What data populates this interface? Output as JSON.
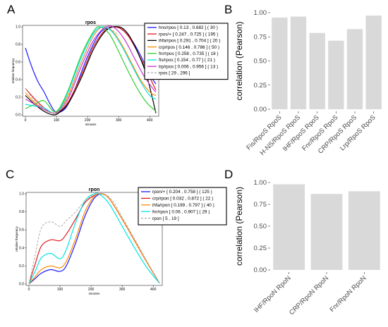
{
  "chart_data": [
    {
      "panel": "A",
      "type": "line",
      "title": "rpos",
      "xlabel": "minutes",
      "ylabel": "relative frequency",
      "xlim": [
        0,
        420
      ],
      "ylim": [
        0,
        1.0
      ],
      "xticks": [
        "0",
        "100",
        "200",
        "300",
        "400"
      ],
      "yticks": [
        "0.0",
        "0.2",
        "0.4",
        "0.6",
        "0.8",
        "1.0"
      ],
      "legend_position": "right",
      "series": [
        {
          "name": "hns/rpos [ 0.13 , 0.682 ] ( 30 )",
          "color": "#1a1aff",
          "dash": false,
          "x": [
            0,
            20,
            40,
            60,
            80,
            100,
            130,
            160,
            200,
            240,
            280,
            310,
            340,
            370,
            400,
            420
          ],
          "y": [
            0.76,
            0.55,
            0.38,
            0.26,
            0.12,
            0.03,
            0.08,
            0.3,
            0.66,
            0.93,
            1.0,
            0.97,
            0.86,
            0.68,
            0.46,
            0.35
          ]
        },
        {
          "name": "rpos/+ [ 0.247 , 0.725 ] ( 195 )",
          "color": "#e31a1c",
          "dash": false,
          "x": [
            0,
            30,
            60,
            90,
            110,
            140,
            180,
            220,
            260,
            300,
            330,
            360,
            390,
            420
          ],
          "y": [
            0.3,
            0.18,
            0.08,
            0.02,
            0.04,
            0.16,
            0.45,
            0.78,
            0.97,
            0.99,
            0.9,
            0.72,
            0.5,
            0.28
          ]
        },
        {
          "name": "ihfa/rpos [ 0.291 , 0.704 ] ( 20 )",
          "color": "#000000",
          "dash": false,
          "x": [
            0,
            30,
            60,
            90,
            110,
            140,
            180,
            220,
            260,
            300,
            330,
            360,
            390,
            420
          ],
          "y": [
            0.22,
            0.12,
            0.04,
            0.0,
            0.03,
            0.14,
            0.42,
            0.75,
            0.96,
            1.0,
            0.92,
            0.72,
            0.45,
            0.02
          ]
        },
        {
          "name": "crp/rpos [ 0.146 , 0.786 ] ( 50 )",
          "color": "#ff8c00",
          "dash": false,
          "x": [
            0,
            30,
            60,
            90,
            110,
            140,
            180,
            220,
            250,
            280,
            310,
            340,
            370,
            400,
            420
          ],
          "y": [
            0.25,
            0.14,
            0.06,
            0.02,
            0.06,
            0.24,
            0.6,
            0.9,
            1.0,
            0.95,
            0.8,
            0.6,
            0.4,
            0.26,
            0.22
          ]
        },
        {
          "name": "fnr/rpos [ 0.258 , 0.735 ] ( 18 )",
          "color": "#33cc33",
          "dash": false,
          "x": [
            0,
            30,
            60,
            90,
            110,
            140,
            180,
            220,
            240,
            270,
            300,
            330,
            360,
            390,
            420
          ],
          "y": [
            0.07,
            0.12,
            0.16,
            0.04,
            0.08,
            0.3,
            0.68,
            0.95,
            1.0,
            0.92,
            0.72,
            0.5,
            0.3,
            0.14,
            0.04
          ]
        },
        {
          "name": "fis/rpos [ 0.154 , 0.77 ] ( 21 )",
          "color": "#00e5e5",
          "dash": false,
          "x": [
            0,
            30,
            60,
            90,
            110,
            140,
            180,
            220,
            250,
            280,
            310,
            340,
            370,
            400,
            420
          ],
          "y": [
            0.12,
            0.1,
            0.08,
            0.02,
            0.06,
            0.28,
            0.65,
            0.93,
            1.0,
            0.94,
            0.78,
            0.58,
            0.38,
            0.22,
            0.18
          ]
        },
        {
          "name": "lrp/rpos [ 0.006 , 0.956 ] ( 13 )",
          "color": "#cc33cc",
          "dash": false,
          "x": [
            0,
            30,
            60,
            90,
            110,
            140,
            180,
            220,
            260,
            290,
            320,
            350,
            380,
            410,
            420
          ],
          "y": [
            0.18,
            0.12,
            0.06,
            0.02,
            0.05,
            0.2,
            0.55,
            0.85,
            1.0,
            0.98,
            0.85,
            0.65,
            0.45,
            0.3,
            0.26
          ]
        },
        {
          "name": "rpos [ 29 , 296 ]",
          "color": "#aaaaaa",
          "dash": true,
          "x": [
            0,
            30,
            60,
            90,
            110,
            140,
            180,
            220,
            250,
            280,
            300
          ],
          "y": [
            0.3,
            0.16,
            0.07,
            0.02,
            0.05,
            0.22,
            0.6,
            0.9,
            1.0,
            0.96,
            0.9
          ]
        }
      ]
    },
    {
      "panel": "B",
      "type": "bar",
      "ylabel": "correlation (Pearson)",
      "ylim": [
        0,
        1.0
      ],
      "yticks": [
        "0.00",
        "0.25",
        "0.50",
        "0.75",
        "1.00"
      ],
      "categories": [
        "Fis/RpoS RpoS",
        "H-NS/RpoS RpoS",
        "IHF/RpoS RpoS",
        "Fnr/RpoS RpoS",
        "CRP/RpoS RpoS",
        "Lrp/RpoS RpoS"
      ],
      "values": [
        0.95,
        0.96,
        0.79,
        0.71,
        0.83,
        0.97
      ]
    },
    {
      "panel": "C",
      "type": "line",
      "title": "rpon",
      "xlabel": "minutes",
      "ylabel": "relative frequency",
      "xlim": [
        0,
        420
      ],
      "ylim": [
        0,
        1.0
      ],
      "xticks": [
        "0",
        "100",
        "200",
        "300",
        "400"
      ],
      "yticks": [
        "0.0",
        "0.2",
        "0.4",
        "0.6",
        "0.8",
        "1.0"
      ],
      "legend_position": "right",
      "series": [
        {
          "name": "rpon/+ [ 0.204 , 0.758 ] ( 125 )",
          "color": "#1a1aff",
          "dash": false,
          "x": [
            0,
            20,
            40,
            70,
            100,
            120,
            150,
            180,
            210,
            235,
            260,
            300,
            340,
            380,
            420
          ],
          "y": [
            0.0,
            0.06,
            0.12,
            0.16,
            0.14,
            0.2,
            0.45,
            0.75,
            0.95,
            1.0,
            0.94,
            0.72,
            0.48,
            0.24,
            0.01
          ]
        },
        {
          "name": "crp/rpon [ 0.032 , 0.872 ] ( 22 )",
          "color": "#e31a1c",
          "dash": false,
          "x": [
            0,
            20,
            40,
            70,
            100,
            120,
            150,
            180,
            210,
            235,
            260,
            300,
            340,
            380,
            420
          ],
          "y": [
            0.0,
            0.22,
            0.42,
            0.49,
            0.48,
            0.55,
            0.72,
            0.9,
            0.98,
            1.0,
            0.94,
            0.72,
            0.48,
            0.24,
            0.01
          ]
        },
        {
          "name": "ihfa/rpon [ 0.199 , 0.797 ] ( 40 )",
          "color": "#ff8c00",
          "dash": false,
          "x": [
            0,
            20,
            40,
            70,
            100,
            120,
            150,
            180,
            210,
            235,
            260,
            300,
            340,
            380,
            420
          ],
          "y": [
            0.0,
            0.08,
            0.16,
            0.2,
            0.18,
            0.25,
            0.5,
            0.8,
            0.97,
            1.0,
            0.94,
            0.72,
            0.48,
            0.24,
            0.01
          ]
        },
        {
          "name": "fnr/rpon [ 0.06 , 0.907 ] ( 29 )",
          "color": "#00e5e5",
          "dash": false,
          "x": [
            0,
            20,
            40,
            70,
            100,
            120,
            150,
            180,
            210,
            230,
            260,
            300,
            340,
            380,
            420
          ],
          "y": [
            0.0,
            0.14,
            0.29,
            0.34,
            0.28,
            0.38,
            0.68,
            0.92,
            1.0,
            0.99,
            0.88,
            0.64,
            0.4,
            0.18,
            0.01
          ]
        },
        {
          "name": "rpon [ 5 , 19 ]",
          "color": "#aaaaaa",
          "dash": true,
          "x": [
            0,
            20,
            40,
            70,
            100,
            120,
            150,
            180,
            210,
            240,
            270,
            300,
            340,
            380,
            420
          ],
          "y": [
            0.0,
            0.32,
            0.62,
            0.69,
            0.64,
            0.7,
            0.8,
            0.92,
            0.99,
            1.0,
            0.92,
            0.74,
            0.5,
            0.25,
            0.01
          ]
        }
      ]
    },
    {
      "panel": "D",
      "type": "bar",
      "ylabel": "correlation (Pearson)",
      "ylim": [
        0,
        1.0
      ],
      "yticks": [
        "0.00",
        "0.25",
        "0.50",
        "0.75",
        "1.00"
      ],
      "categories": [
        "IHF/RpoN RpoN",
        "CRP/RpoN RpoN",
        "Fnr/RpoN RpoN"
      ],
      "values": [
        0.98,
        0.87,
        0.9
      ]
    }
  ],
  "panel_labels": [
    "A",
    "B",
    "C",
    "D"
  ]
}
